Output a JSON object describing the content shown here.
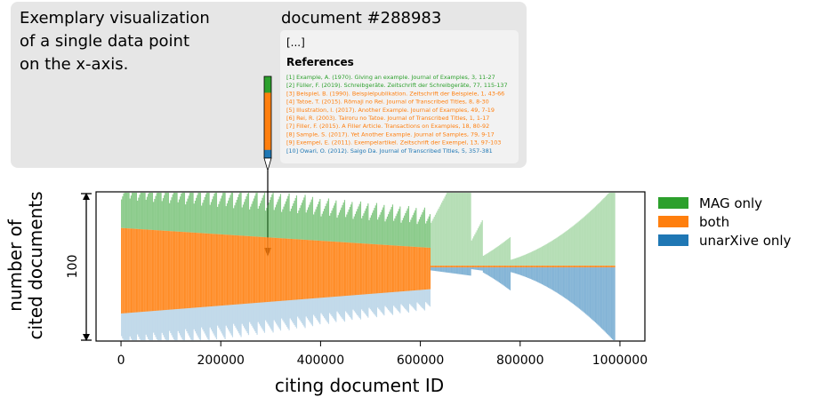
{
  "annotation": {
    "caption_lines": [
      "Exemplary visualization",
      "of a single data point",
      "on the x-axis."
    ],
    "document_title": "document #288983",
    "ellipsis": "[...]",
    "references_heading": "References",
    "references": [
      {
        "text": "[1] Example, A. (1970). Giving an example. Journal of Examples, 3, 11-27",
        "category": "MAG only"
      },
      {
        "text": "[2] Füller, F. (2019). Schreibgeräte. Zeitschrift der Schreibgeräte, 77, 115-137",
        "category": "MAG only"
      },
      {
        "text": "[3] Beispiel, B. (1990). Beispielpublikation. Zeitschrift der Beispiele, 1, 43-66",
        "category": "both"
      },
      {
        "text": "[4] Tatoe, T. (2015). Rōmaji no Rei. Journal of Transcribed Titles, 8, 8-30",
        "category": "both"
      },
      {
        "text": "[5] Illustration, I. (2017). Another Example. Journal of Examples, 49, 7-19",
        "category": "both"
      },
      {
        "text": "[6] Rei, R. (2003). Tairoru no Tatoe. Journal of Transcribed Titles, 1, 1-17",
        "category": "both"
      },
      {
        "text": "[7] Filler, F. (2015). A Filler Article. Transactions on Examples, 18, 80-92",
        "category": "both"
      },
      {
        "text": "[8] Sample, S. (2017). Yet Another Example. Journal of Samples, 79, 9-17",
        "category": "both"
      },
      {
        "text": "[9] Exempel, E. (2011). Exempelartikel. Zeitschrift der Exempel, 13, 97-103",
        "category": "both"
      },
      {
        "text": "[10] Owari, O. (2012). Saigo Da. Journal of Transcribed Titles, 5, 357-381",
        "category": "unarXive only"
      }
    ],
    "marker_x": 288983
  },
  "chart_data": {
    "type": "area",
    "xlabel": "citing document ID",
    "ylabel": "number of cited documents",
    "xlim": [
      -50000,
      1050000
    ],
    "x_ticks": [
      0,
      200000,
      400000,
      600000,
      800000,
      1000000
    ],
    "x_tick_labels": [
      "0",
      "200000",
      "400000",
      "600000",
      "800000",
      "1000000"
    ],
    "y_ticks": [
      100
    ],
    "y_tick_labels": [
      "100"
    ],
    "ylim": [
      0,
      200
    ],
    "legend_position": "outside-right",
    "series": [
      {
        "name": "MAG only",
        "color": "#2ca02c"
      },
      {
        "name": "both",
        "color": "#ff7f0e"
      },
      {
        "name": "unarXive only",
        "color": "#1f77b4"
      }
    ],
    "segment_breaks": [
      0,
      620000,
      725000,
      990000
    ],
    "stacked_share_at_start": {
      "MAG only": 0.22,
      "both": 0.58,
      "unarXive only": 0.2
    },
    "stacked_share_at_end": {
      "MAG only": 0.02,
      "both": 0.02,
      "unarXive only": 0.96
    }
  },
  "colors": {
    "mag_only": "#2ca02c",
    "both": "#ff7f0e",
    "unarxive_only": "#1f77b4",
    "annotation_box": "#e6e6e6",
    "document_box": "#f2f2f2"
  }
}
